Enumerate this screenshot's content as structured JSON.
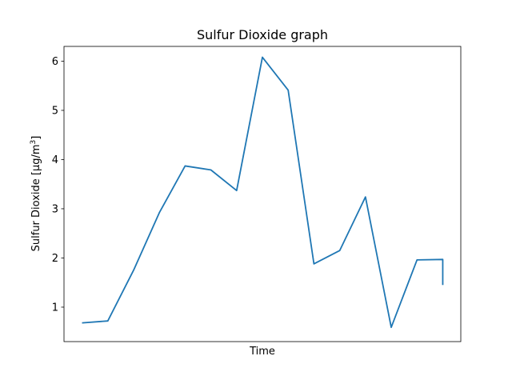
{
  "chart_data": {
    "type": "line",
    "title": "Sulfur Dioxide graph",
    "xlabel": "Time",
    "ylabel": "Sulfur Dioxide [µg/m",
    "ylabel_superscript": "3",
    "ylabel_suffix": "]",
    "ylim": [
      0.3,
      6.3
    ],
    "yticks": [
      1,
      2,
      3,
      4,
      5,
      6
    ],
    "xticks_shown": false,
    "grid": false,
    "legend": false,
    "series": [
      {
        "color": "#1f77b4",
        "x": [
          0,
          1,
          2,
          3,
          4,
          5,
          6,
          7,
          8,
          9,
          10,
          11,
          12,
          13,
          14,
          14
        ],
        "values": [
          0.68,
          0.72,
          1.75,
          2.92,
          3.87,
          3.79,
          3.37,
          6.08,
          5.41,
          1.88,
          2.15,
          3.24,
          0.59,
          1.96,
          1.97,
          1.45
        ]
      }
    ]
  }
}
